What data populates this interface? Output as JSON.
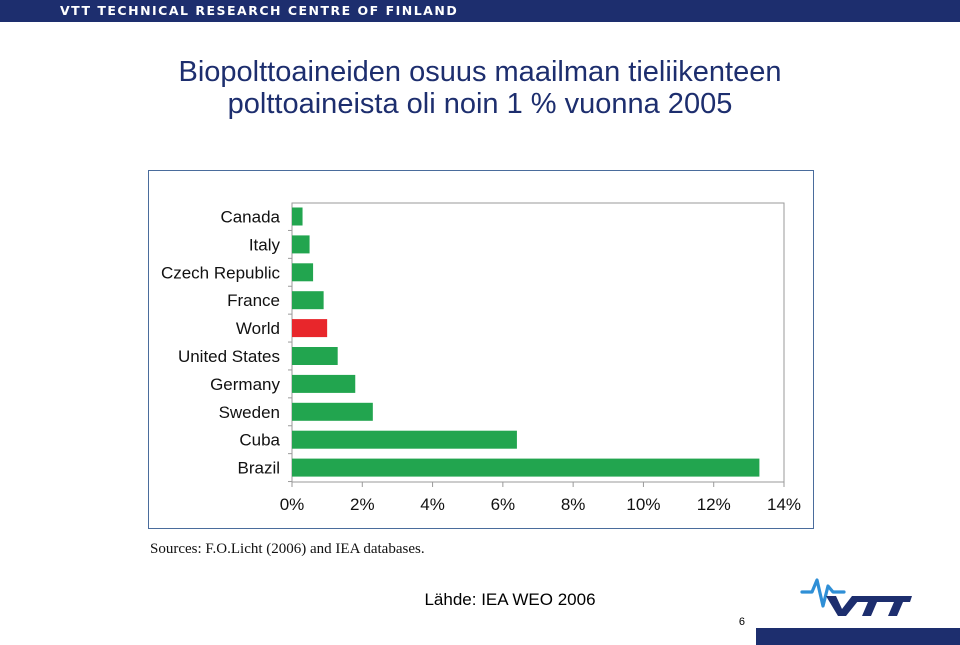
{
  "header": {
    "org_name": "VTT TECHNICAL RESEARCH CENTRE OF FINLAND"
  },
  "slide": {
    "title_line1": "Biopolttoaineiden osuus maailman tieliikenteen",
    "title_line2": "polttoaineista oli noin 1 % vuonna 2005",
    "sources_note": "Sources: F.O.Licht (2006) and IEA databases.",
    "source_label": "Lähde: IEA WEO 2006",
    "page_number": "6",
    "logo_text": "VTT"
  },
  "colors": {
    "bar": "#22a54f",
    "highlight_bar": "#e8262b",
    "header_band": "#1d2e6e",
    "frame_border": "#4a6c9c",
    "logo_blue": "#2f8fd6"
  },
  "chart_data": {
    "type": "bar",
    "orientation": "horizontal",
    "categories": [
      "Canada",
      "Italy",
      "Czech Republic",
      "France",
      "World",
      "United States",
      "Germany",
      "Sweden",
      "Cuba",
      "Brazil"
    ],
    "values": [
      0.3,
      0.5,
      0.6,
      0.9,
      1.0,
      1.3,
      1.8,
      2.3,
      6.4,
      13.3
    ],
    "highlight": "World",
    "xlim": [
      0,
      14
    ],
    "xticks": [
      0,
      2,
      4,
      6,
      8,
      10,
      12,
      14
    ],
    "xtick_labels": [
      "0%",
      "2%",
      "4%",
      "6%",
      "8%",
      "10%",
      "12%",
      "14%"
    ],
    "grid": false,
    "legend": "none"
  }
}
